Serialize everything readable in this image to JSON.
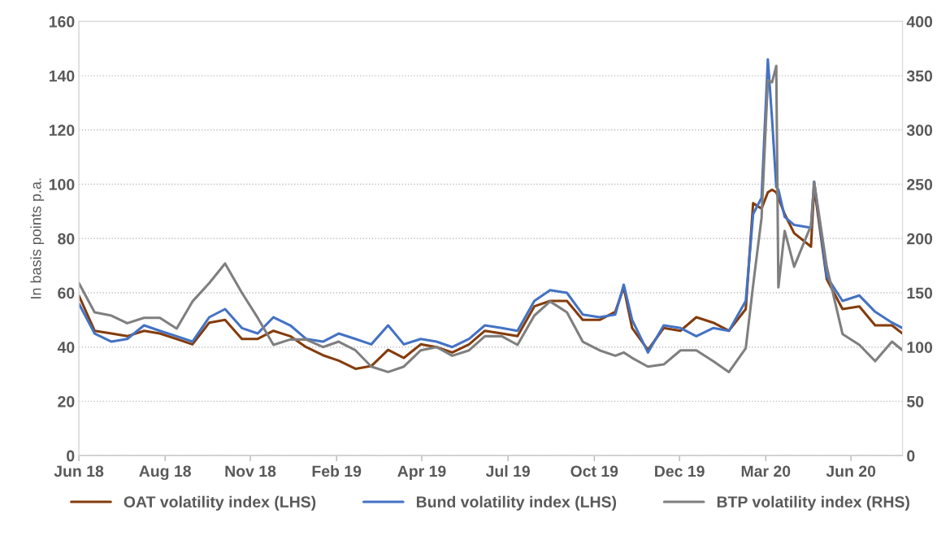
{
  "chart_data": {
    "type": "line",
    "ylabel": "In basis points p.a.",
    "x": [
      "2018-06-04",
      "2018-06-19",
      "2018-07-05",
      "2018-07-20",
      "2018-08-05",
      "2018-08-20",
      "2018-09-05",
      "2018-09-20",
      "2018-10-06",
      "2018-10-21",
      "2018-11-06",
      "2018-11-21",
      "2018-12-06",
      "2018-12-22",
      "2019-01-06",
      "2019-01-22",
      "2019-02-06",
      "2019-02-22",
      "2019-03-09",
      "2019-03-25",
      "2019-04-09",
      "2019-04-25",
      "2019-05-10",
      "2019-05-25",
      "2019-06-10",
      "2019-06-25",
      "2019-07-11",
      "2019-07-26",
      "2019-08-11",
      "2019-08-26",
      "2019-09-11",
      "2019-09-26",
      "2019-10-12",
      "2019-10-27",
      "2019-11-04",
      "2019-11-12",
      "2019-11-27",
      "2019-12-12",
      "2019-12-28",
      "2020-01-12",
      "2020-01-28",
      "2020-02-12",
      "2020-02-28",
      "2020-03-06",
      "2020-03-14",
      "2020-03-20",
      "2020-03-24",
      "2020-03-28",
      "2020-03-30",
      "2020-04-05",
      "2020-04-14",
      "2020-04-30",
      "2020-05-03",
      "2020-05-15",
      "2020-05-30",
      "2020-06-15",
      "2020-06-30",
      "2020-07-16",
      "2020-07-26"
    ],
    "series": [
      {
        "name": "OAT volatility index (LHS)",
        "color": "#843c0c",
        "values": [
          59,
          46,
          45,
          44,
          46,
          45,
          43,
          41,
          49,
          50,
          43,
          43,
          46,
          44,
          40,
          37,
          35,
          32,
          33,
          39,
          36,
          41,
          40,
          38,
          41,
          46,
          45,
          44,
          55,
          57,
          57,
          50,
          50,
          53,
          62,
          47,
          39,
          47,
          46,
          51,
          49,
          46,
          54,
          93,
          91,
          97,
          98,
          97,
          95,
          89,
          82,
          77,
          99,
          65,
          54,
          55,
          48,
          48,
          45
        ]
      },
      {
        "name": "Bund volatility index (LHS)",
        "color": "#4472c4",
        "values": [
          56,
          45,
          42,
          43,
          48,
          46,
          44,
          42,
          51,
          54,
          47,
          45,
          51,
          48,
          43,
          42,
          45,
          43,
          41,
          48,
          41,
          43,
          42,
          40,
          43,
          48,
          47,
          46,
          57,
          61,
          60,
          52,
          51,
          52,
          63,
          50,
          38,
          48,
          47,
          44,
          47,
          46,
          57,
          89,
          95,
          146,
          124,
          99,
          98,
          88,
          85,
          84,
          101,
          66,
          57,
          59,
          53,
          49,
          47
        ]
      },
      {
        "name": "BTP volatility index (RHS)",
        "color": "#7f7f7f",
        "axis": "y2",
        "values": [
          159,
          132,
          129,
          122,
          127,
          127,
          117,
          142,
          159,
          177,
          150,
          127,
          102,
          107,
          107,
          100,
          105,
          97,
          82,
          77,
          82,
          97,
          100,
          92,
          97,
          110,
          110,
          102,
          129,
          142,
          132,
          105,
          97,
          92,
          95,
          90,
          82,
          84,
          97,
          97,
          87,
          77,
          99,
          157,
          219,
          346,
          344,
          359,
          155,
          207,
          174,
          212,
          252,
          174,
          112,
          102,
          87,
          105,
          97
        ]
      }
    ],
    "xlim": [
      "2018-06-04",
      "2020-07-26"
    ],
    "xticks": [
      {
        "value": "2018-06-04",
        "label": "Jun 18"
      },
      {
        "value": "2018-08-25",
        "label": "Aug 18"
      },
      {
        "value": "2018-11-14",
        "label": "Nov 18"
      },
      {
        "value": "2019-02-04",
        "label": "Feb 19"
      },
      {
        "value": "2019-04-26",
        "label": "Apr 19"
      },
      {
        "value": "2019-07-17",
        "label": "Jul 19"
      },
      {
        "value": "2019-10-07",
        "label": "Oct 19"
      },
      {
        "value": "2019-12-27",
        "label": "Dec 19"
      },
      {
        "value": "2020-03-18",
        "label": "Mar 20"
      },
      {
        "value": "2020-06-07",
        "label": "Jun 20"
      }
    ],
    "ylim": [
      0,
      160
    ],
    "yticks": [
      0,
      20,
      40,
      60,
      80,
      100,
      120,
      140,
      160
    ],
    "y2lim": [
      0,
      400
    ],
    "y2ticks": [
      0,
      50,
      100,
      150,
      200,
      250,
      300,
      350,
      400
    ],
    "grid": "y",
    "legend": "bottom",
    "line_style": "solid",
    "marker": "none"
  }
}
